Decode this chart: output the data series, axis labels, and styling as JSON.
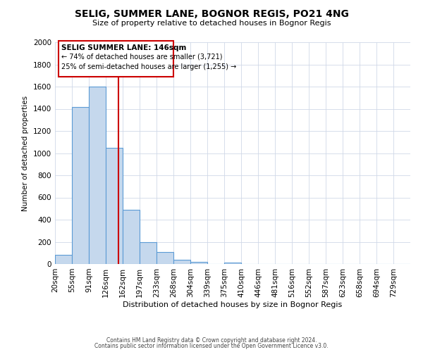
{
  "title": "SELIG, SUMMER LANE, BOGNOR REGIS, PO21 4NG",
  "subtitle": "Size of property relative to detached houses in Bognor Regis",
  "xlabel": "Distribution of detached houses by size in Bognor Regis",
  "ylabel": "Number of detached properties",
  "bin_labels": [
    "20sqm",
    "55sqm",
    "91sqm",
    "126sqm",
    "162sqm",
    "197sqm",
    "233sqm",
    "268sqm",
    "304sqm",
    "339sqm",
    "375sqm",
    "410sqm",
    "446sqm",
    "481sqm",
    "516sqm",
    "552sqm",
    "587sqm",
    "623sqm",
    "658sqm",
    "694sqm",
    "729sqm"
  ],
  "bar_values": [
    85,
    1415,
    1600,
    1050,
    490,
    200,
    105,
    40,
    20,
    0,
    15,
    0,
    0,
    0,
    0,
    0,
    0,
    0,
    0,
    0,
    0
  ],
  "bar_color": "#c5d8ed",
  "bar_edge_color": "#5b9bd5",
  "vline_x": 3.74,
  "vline_color": "#cc0000",
  "annotation_title": "SELIG SUMMER LANE: 146sqm",
  "annotation_line1": "← 74% of detached houses are smaller (3,721)",
  "annotation_line2": "25% of semi-detached houses are larger (1,255) →",
  "annotation_box_color": "#cc0000",
  "ylim": [
    0,
    2000
  ],
  "yticks": [
    0,
    200,
    400,
    600,
    800,
    1000,
    1200,
    1400,
    1600,
    1800,
    2000
  ],
  "footer1": "Contains HM Land Registry data © Crown copyright and database right 2024.",
  "footer2": "Contains public sector information licensed under the Open Government Licence v3.0.",
  "background_color": "#ffffff",
  "grid_color": "#d0d8e8"
}
